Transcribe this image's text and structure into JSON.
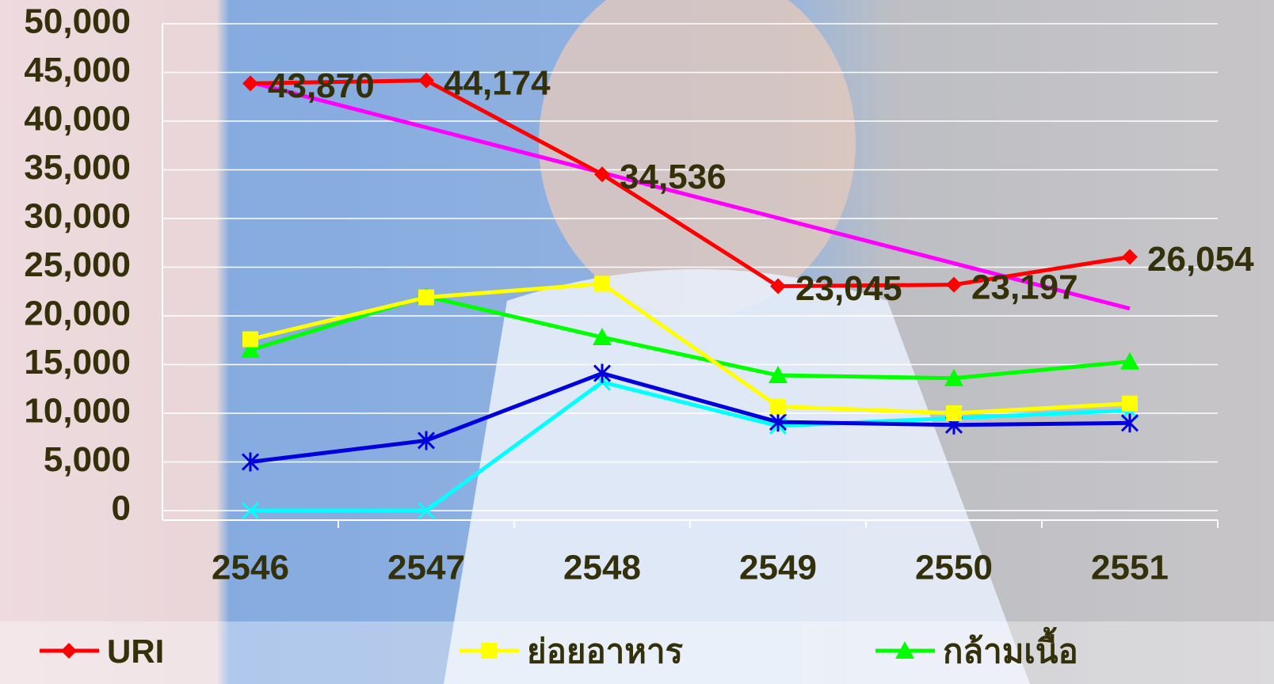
{
  "chart_data": {
    "type": "line",
    "categories": [
      "2546",
      "2547",
      "2548",
      "2549",
      "2550",
      "2551"
    ],
    "series": [
      {
        "name": "URI",
        "color": "#ff0000",
        "marker": "diamond",
        "values": [
          43870,
          44174,
          34536,
          23045,
          23197,
          26054
        ],
        "value_labels": [
          "43,870",
          "44,174",
          "34,536",
          "23,045",
          "23,197",
          "26,054"
        ]
      },
      {
        "name": "ย่อยอาหาร",
        "color": "#ffff00",
        "marker": "square",
        "values": [
          17600,
          21900,
          23300,
          10700,
          10000,
          11000
        ]
      },
      {
        "name": "กล้ามเนื้อ",
        "color": "#00ff00",
        "marker": "triangle",
        "values": [
          16500,
          22000,
          17800,
          13900,
          13600,
          15300
        ]
      },
      {
        "color": "#0000dd",
        "marker": "star",
        "values": [
          5000,
          7200,
          14100,
          9100,
          8800,
          9000
        ]
      },
      {
        "color": "#00ffff",
        "marker": "x",
        "values": [
          0,
          0,
          13200,
          8700,
          9500,
          10300
        ]
      },
      {
        "color": "#ff00ff",
        "marker": "none",
        "values": [
          44000,
          39350,
          34700,
          30050,
          25400,
          20750
        ]
      }
    ],
    "ylim": [
      0,
      50000
    ],
    "yticks": [
      0,
      {
        "value": 5000,
        "label": "5,000"
      },
      {
        "value": 10000,
        "label": "10,000"
      },
      {
        "value": 15000,
        "label": "15,000"
      },
      {
        "value": 20000,
        "label": "20,000"
      },
      {
        "value": 25000,
        "label": "25,000"
      },
      {
        "value": 30000,
        "label": "30,000"
      },
      {
        "value": 35000,
        "label": "35,000"
      },
      {
        "value": 40000,
        "label": "40,000"
      },
      {
        "value": 45000,
        "label": "45,000"
      },
      {
        "value": 50000,
        "label": "50,000"
      }
    ],
    "grid": true,
    "legend": "bottom"
  }
}
